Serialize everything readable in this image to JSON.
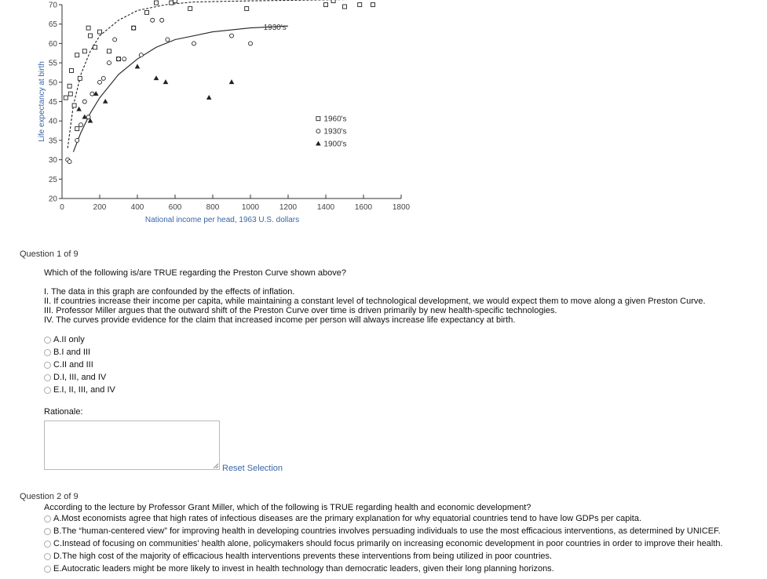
{
  "chart_data": {
    "type": "scatter",
    "ylabel": "Life expectancy at birth",
    "xlabel": "National income per head, 1963 U.S. dollars",
    "xlim": [
      0,
      1800
    ],
    "ylim": [
      20,
      70
    ],
    "x_ticks": [
      0,
      200,
      400,
      600,
      800,
      1000,
      1200,
      1400,
      1600,
      1800
    ],
    "y_ticks": [
      20,
      25,
      30,
      35,
      40,
      45,
      50,
      55,
      60,
      65,
      70
    ],
    "curve_labels": [
      {
        "text": "1930's",
        "x": 1130,
        "y": 63.5
      }
    ],
    "legend": [
      {
        "marker": "square",
        "label": "1960's"
      },
      {
        "marker": "circle",
        "label": "1930's"
      },
      {
        "marker": "triangle",
        "label": "1900's"
      }
    ],
    "legend_placement": "right",
    "series": [
      {
        "name": "1960's",
        "marker": "square",
        "curve": [
          [
            30,
            33
          ],
          [
            60,
            44
          ],
          [
            100,
            52
          ],
          [
            150,
            58
          ],
          [
            200,
            62
          ],
          [
            300,
            66
          ],
          [
            400,
            68.5
          ],
          [
            550,
            70
          ],
          [
            700,
            70.7
          ],
          [
            1000,
            71
          ],
          [
            1800,
            71.5
          ]
        ],
        "points": [
          [
            40,
            49
          ],
          [
            50,
            53
          ],
          [
            80,
            57
          ],
          [
            95,
            51
          ],
          [
            120,
            58
          ],
          [
            150,
            62
          ],
          [
            175,
            59
          ],
          [
            200,
            63
          ],
          [
            250,
            58
          ],
          [
            300,
            56
          ],
          [
            380,
            64
          ],
          [
            450,
            68
          ],
          [
            500,
            70.5
          ],
          [
            580,
            70.5
          ],
          [
            600,
            71
          ],
          [
            680,
            69
          ],
          [
            980,
            69
          ],
          [
            1400,
            70
          ],
          [
            1440,
            71
          ],
          [
            1500,
            69.5
          ],
          [
            1580,
            70
          ],
          [
            1650,
            70
          ],
          [
            20,
            46
          ],
          [
            80,
            38
          ],
          [
            45,
            47
          ],
          [
            140,
            64
          ],
          [
            65,
            44
          ]
        ]
      },
      {
        "name": "1930's",
        "marker": "circle",
        "curve": [
          [
            60,
            32
          ],
          [
            100,
            37
          ],
          [
            150,
            42
          ],
          [
            200,
            46
          ],
          [
            300,
            52
          ],
          [
            400,
            56
          ],
          [
            500,
            59
          ],
          [
            600,
            61
          ],
          [
            800,
            63
          ],
          [
            1000,
            64
          ],
          [
            1200,
            64.5
          ]
        ],
        "points": [
          [
            30,
            30
          ],
          [
            40,
            29.5
          ],
          [
            80,
            35
          ],
          [
            100,
            39
          ],
          [
            120,
            45
          ],
          [
            140,
            41
          ],
          [
            160,
            47
          ],
          [
            200,
            50
          ],
          [
            220,
            51
          ],
          [
            250,
            55
          ],
          [
            280,
            61
          ],
          [
            300,
            56
          ],
          [
            330,
            56
          ],
          [
            380,
            64
          ],
          [
            420,
            57
          ],
          [
            480,
            66
          ],
          [
            530,
            66
          ],
          [
            560,
            61
          ],
          [
            700,
            60
          ],
          [
            900,
            62
          ],
          [
            1000,
            60
          ]
        ]
      },
      {
        "name": "1900's",
        "marker": "triangle",
        "points": [
          [
            90,
            43
          ],
          [
            120,
            41
          ],
          [
            150,
            40
          ],
          [
            180,
            47
          ],
          [
            230,
            45
          ],
          [
            400,
            54
          ],
          [
            500,
            51
          ],
          [
            550,
            50
          ],
          [
            780,
            46
          ],
          [
            900,
            50
          ]
        ]
      }
    ]
  },
  "question1": {
    "header": "Question 1 of 9",
    "prompt": "Which of the following is/are TRUE regarding the Preston Curve shown above?",
    "statements": [
      "I. The data in this graph are confounded by the effects of inflation.",
      "II. If countries increase their income per capita, while maintaining a constant level of technological development, we would expect them to move along a given Preston Curve.",
      "III. Professor Miller argues that the outward shift of the Preston Curve over time is driven primarily by new health-specific technologies.",
      "IV. The curves provide evidence for the claim that increased income per person will always increase life expectancy at birth."
    ],
    "options": [
      "A.II only",
      "B.I and III",
      "C.II and III",
      "D.I, III, and IV",
      "E.I, II, III, and IV"
    ],
    "rationale_label": "Rationale:",
    "rationale_value": "",
    "reset_label": "Reset Selection"
  },
  "question2": {
    "header": "Question 2 of 9",
    "prompt": "According to the lecture by Professor Grant Miller, which of the following is TRUE regarding health and economic development?",
    "options": [
      "A.Most economists agree that high rates of infectious diseases are the primary explanation for why equatorial countries tend to have low GDPs per capita.",
      "B.The “human-centered view” for improving health in developing countries involves persuading individuals to use the most efficacious interventions, as determined by UNICEF.",
      "C.Instead of focusing on communities' health alone, policymakers should focus primarily on increasing economic development in poor countries in order to improve their health.",
      "D.The high cost of the majority of efficacious health interventions prevents these interventions from being utilized in poor countries.",
      "E.Autocratic leaders might be more likely to invest in health technology than democratic leaders, given their long planning horizons."
    ]
  }
}
